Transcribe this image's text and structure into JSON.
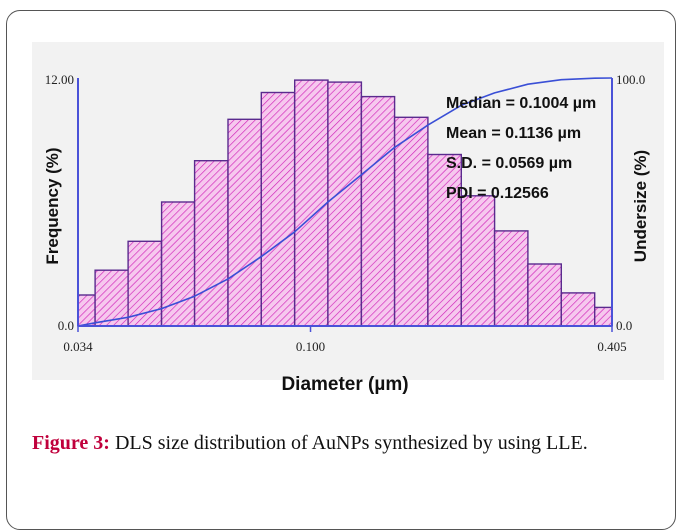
{
  "chart_data": {
    "type": "bar",
    "xlabel": "Diameter (µm)",
    "ylabel_left": "Frequency (%)",
    "ylabel_right": "Undersize (%)",
    "x_scale": "log",
    "x_ticks": [
      "0.034",
      "0.100",
      "0.405"
    ],
    "x_tick_values": [
      0.034,
      0.1,
      0.405
    ],
    "xlim": [
      0.034,
      0.405
    ],
    "y_left_ticks": [
      "12.00",
      "0.0"
    ],
    "ylim_left": [
      0,
      12
    ],
    "y_right_ticks": [
      "100.0",
      "0.0"
    ],
    "ylim_right": [
      0,
      100
    ],
    "bins": [
      {
        "x_low": 0.034,
        "x_high": 0.0368,
        "value": 1.5
      },
      {
        "x_low": 0.0368,
        "x_high": 0.0429,
        "value": 2.7
      },
      {
        "x_low": 0.0429,
        "x_high": 0.0501,
        "value": 4.1
      },
      {
        "x_low": 0.0501,
        "x_high": 0.0584,
        "value": 6.0
      },
      {
        "x_low": 0.0584,
        "x_high": 0.0682,
        "value": 8.0
      },
      {
        "x_low": 0.0682,
        "x_high": 0.0796,
        "value": 10.0
      },
      {
        "x_low": 0.0796,
        "x_high": 0.0929,
        "value": 11.3
      },
      {
        "x_low": 0.0929,
        "x_high": 0.1084,
        "value": 11.9
      },
      {
        "x_low": 0.1084,
        "x_high": 0.1266,
        "value": 11.8
      },
      {
        "x_low": 0.1266,
        "x_high": 0.1477,
        "value": 11.1
      },
      {
        "x_low": 0.1477,
        "x_high": 0.1724,
        "value": 10.1
      },
      {
        "x_low": 0.1724,
        "x_high": 0.2013,
        "value": 8.3
      },
      {
        "x_low": 0.2013,
        "x_high": 0.2349,
        "value": 6.3
      },
      {
        "x_low": 0.2349,
        "x_high": 0.2742,
        "value": 4.6
      },
      {
        "x_low": 0.2742,
        "x_high": 0.3201,
        "value": 3.0
      },
      {
        "x_low": 0.3201,
        "x_high": 0.3737,
        "value": 1.6
      },
      {
        "x_low": 0.3737,
        "x_high": 0.405,
        "value": 0.9
      }
    ],
    "undersize_curve": {
      "x": [
        0.034,
        0.0368,
        0.0429,
        0.0501,
        0.0584,
        0.0682,
        0.0796,
        0.0929,
        0.1084,
        0.1266,
        0.1477,
        0.1724,
        0.2013,
        0.2349,
        0.2742,
        0.3201,
        0.3737,
        0.405
      ],
      "y": [
        0,
        1.3,
        3.5,
        7,
        12,
        19,
        28,
        38,
        50,
        61,
        72,
        81,
        89,
        94,
        97.5,
        99.3,
        99.9,
        100
      ]
    },
    "annotations": [
      "Median = 0.1004 µm",
      "Mean = 0.1136 µm",
      "S.D. = 0.0569 µm",
      "PDI = 0.12566"
    ],
    "colors": {
      "bar_fill": "#f6c8ee",
      "hatch": "#d020b8",
      "bar_border": "#5a2b8e",
      "curve": "#3a4fd6",
      "axis": "#4a52d8"
    }
  },
  "caption": {
    "label": "Figure 3:",
    "text": " DLS size distribution of AuNPs synthesized by using LLE."
  }
}
